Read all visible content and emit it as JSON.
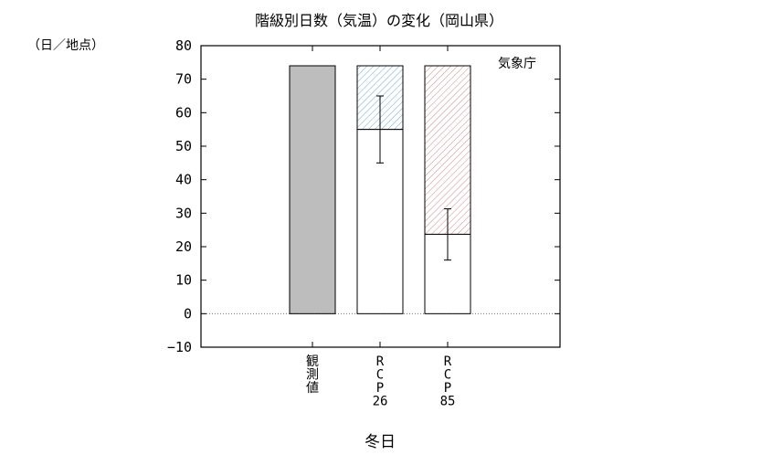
{
  "chart_data": {
    "type": "bar",
    "title": "階級別日数（気温）の変化（岡山県）",
    "unit_label": "（日／地点）",
    "source": "気象庁",
    "xlabel": "冬日",
    "ylim": [
      -10,
      80
    ],
    "yticks": [
      -10,
      0,
      10,
      20,
      30,
      40,
      50,
      60,
      70,
      80
    ],
    "zero_line": "dotted",
    "categories": [
      "観測値",
      "RCP26",
      "RCP85"
    ],
    "category_labels": [
      [
        "観",
        "測",
        "値"
      ],
      [
        "R",
        "C",
        "P",
        "26"
      ],
      [
        "R",
        "C",
        "P",
        "85"
      ]
    ],
    "bars": [
      {
        "category": "観測値",
        "baseline": 74,
        "fill_color": "#bdbdbd"
      },
      {
        "category": "RCP26",
        "baseline": 74,
        "future": 55,
        "change": -19,
        "error_low": 45,
        "error_high": 65,
        "hatch_color": "#6fa8c8"
      },
      {
        "category": "RCP85",
        "baseline": 74,
        "future": 23.7,
        "change": -50.3,
        "error_low": 16,
        "error_high": 31.3,
        "hatch_color": "#d08a80"
      }
    ]
  }
}
